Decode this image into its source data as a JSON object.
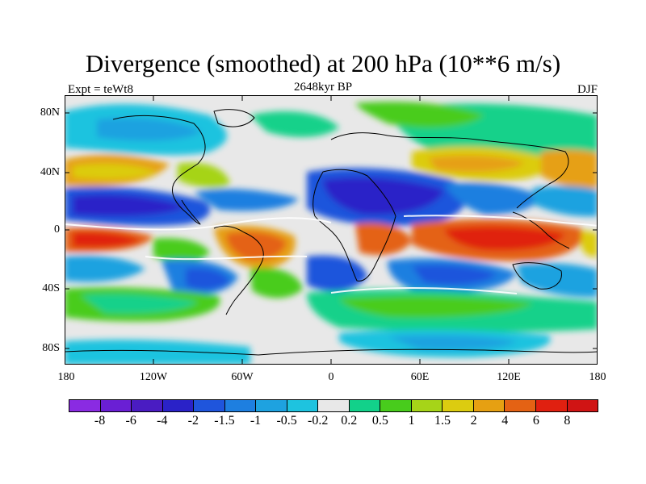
{
  "title": "Divergence (smoothed) at 200 hPa (10**6 m/s)",
  "subtitle_left": "Expt = teWt8",
  "subtitle_center": "2648kyr BP",
  "subtitle_right": "DJF",
  "y_labels": [
    "80N",
    "40N",
    "0",
    "40S",
    "80S"
  ],
  "x_labels": [
    "180",
    "120W",
    "60W",
    "0",
    "60E",
    "120E",
    "180"
  ],
  "colorbar": {
    "labels": [
      "-8",
      "-6",
      "-4",
      "-2",
      "-1.5",
      "-1",
      "-0.5",
      "-0.2",
      "0.2",
      "0.5",
      "1",
      "1.5",
      "2",
      "4",
      "6",
      "8"
    ],
    "colors": [
      "#8a2be2",
      "#6a1fd4",
      "#4a1cc2",
      "#2a22c8",
      "#1f55dc",
      "#1e7fe0",
      "#1ea2e0",
      "#1ec3df",
      "#e8e8e8",
      "#12d18a",
      "#48cc1c",
      "#a6d418",
      "#dccc10",
      "#e6a012",
      "#e46214",
      "#e02010",
      "#d01414"
    ]
  },
  "legend": {
    "swatch_names": [
      "lt -8",
      "-8 to -6",
      "-6 to -4",
      "-4 to -2",
      "-2 to -1.5",
      "-1.5 to -1",
      "-1 to -0.5",
      "-0.5 to -0.2",
      "-0.2 to 0.2",
      "0.2 to 0.5",
      "0.5 to 1",
      "1 to 1.5",
      "1.5 to 2",
      "2 to 4",
      "4 to 6",
      "6 to 8",
      "gt 8"
    ]
  }
}
